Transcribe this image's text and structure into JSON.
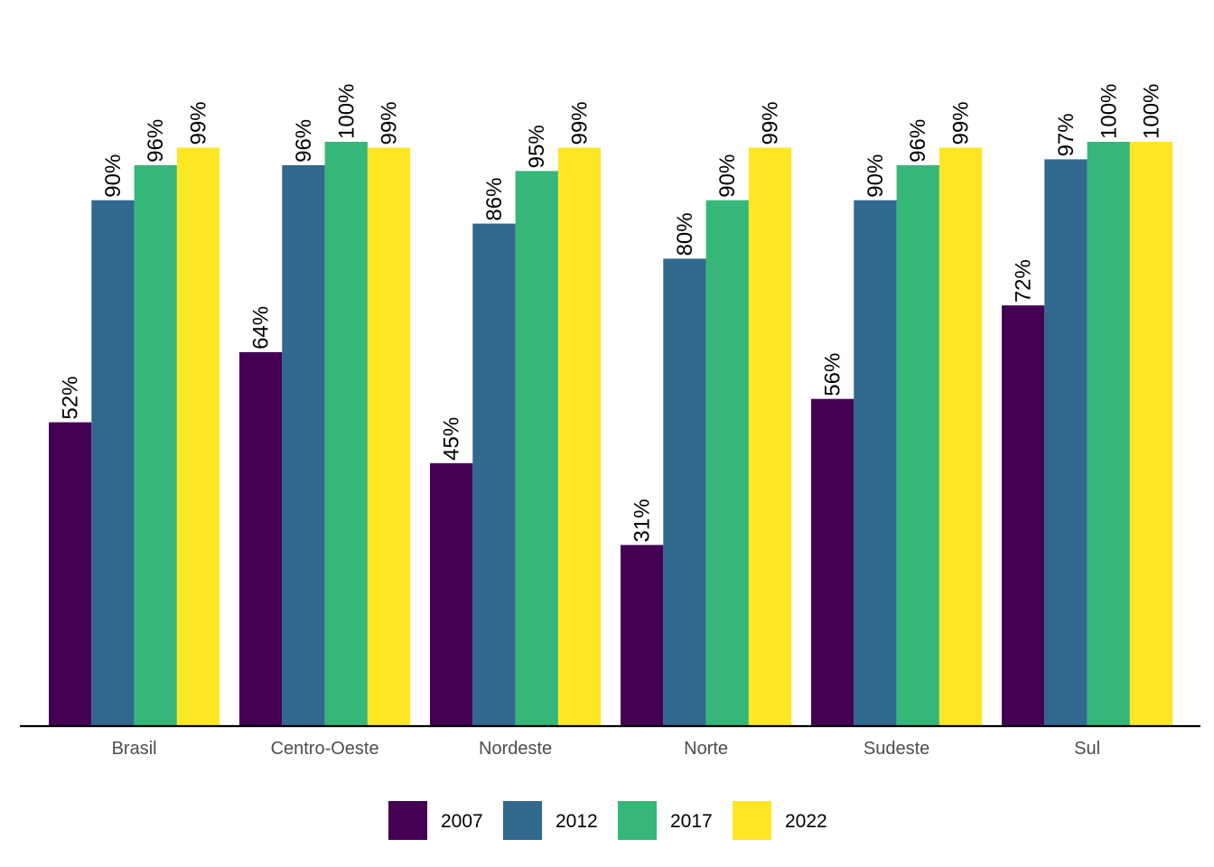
{
  "chart_data": {
    "type": "bar",
    "categories": [
      "Brasil",
      "Centro-Oeste",
      "Nordeste",
      "Norte",
      "Sudeste",
      "Sul"
    ],
    "series": [
      {
        "name": "2007",
        "color": "#440154",
        "values": [
          52,
          64,
          45,
          31,
          56,
          72
        ],
        "labels": [
          "52%",
          "64%",
          "45%",
          "31%",
          "56%",
          "72%"
        ]
      },
      {
        "name": "2012",
        "color": "#31688E",
        "values": [
          90,
          96,
          86,
          80,
          90,
          97
        ],
        "labels": [
          "90%",
          "96%",
          "86%",
          "80%",
          "90%",
          "97%"
        ]
      },
      {
        "name": "2017",
        "color": "#35B779",
        "values": [
          96,
          100,
          95,
          90,
          96,
          100
        ],
        "labels": [
          "96%",
          "100%",
          "95%",
          "90%",
          "96%",
          "100%"
        ]
      },
      {
        "name": "2022",
        "color": "#FDE725",
        "values": [
          99,
          99,
          99,
          99,
          99,
          100
        ],
        "labels": [
          "99%",
          "99%",
          "99%",
          "99%",
          "99%",
          "100%"
        ]
      }
    ],
    "ylim": [
      0,
      100
    ],
    "grid": false,
    "legend_position": "bottom"
  }
}
